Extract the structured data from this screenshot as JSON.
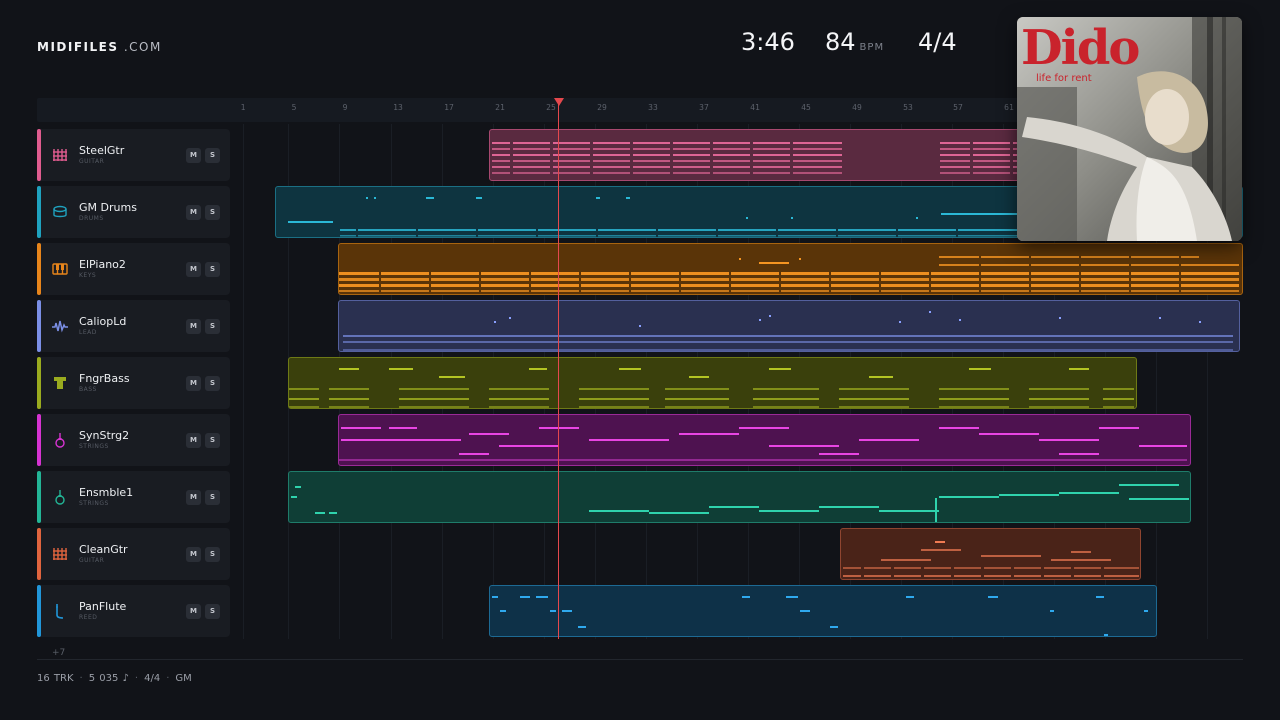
{
  "brand": {
    "name": "MIDIFILES",
    "tld": ".COM"
  },
  "stats": {
    "time": "3:46",
    "bpm": "84",
    "bpm_unit": "BPM",
    "signature": "4/4"
  },
  "album": {
    "artist": "Dido",
    "title": "life for rent"
  },
  "ruler": {
    "ticks": [
      "1",
      "5",
      "9",
      "13",
      "17",
      "21",
      "25",
      "29",
      "33",
      "37",
      "41",
      "45",
      "49",
      "53",
      "57",
      "61"
    ]
  },
  "playhead_bar": 25,
  "tracks": [
    {
      "name": "SteelGtr",
      "category": "GUITAR",
      "mute": "M",
      "solo": "S",
      "color": "#e05c8f",
      "icon": "guitar-grid-icon"
    },
    {
      "name": "GM Drums",
      "category": "DRUMS",
      "mute": "M",
      "solo": "S",
      "color": "#1fa2bf",
      "icon": "drum-icon"
    },
    {
      "name": "ElPiano2",
      "category": "KEYS",
      "mute": "M",
      "solo": "S",
      "color": "#e8851b",
      "icon": "piano-keys-icon"
    },
    {
      "name": "CaliopLd",
      "category": "LEAD",
      "mute": "M",
      "solo": "S",
      "color": "#7b8fe6",
      "icon": "waveform-icon"
    },
    {
      "name": "FngrBass",
      "category": "BASS",
      "mute": "M",
      "solo": "S",
      "color": "#9aab1f",
      "icon": "bass-amp-icon"
    },
    {
      "name": "SynStrg2",
      "category": "STRINGS",
      "mute": "M",
      "solo": "S",
      "color": "#d633d1",
      "icon": "violin-icon"
    },
    {
      "name": "Ensmble1",
      "category": "STRINGS",
      "mute": "M",
      "solo": "S",
      "color": "#23b596",
      "icon": "violin-icon"
    },
    {
      "name": "CleanGtr",
      "category": "GUITAR",
      "mute": "M",
      "solo": "S",
      "color": "#e0643e",
      "icon": "guitar-grid-icon"
    },
    {
      "name": "PanFlute",
      "category": "REED",
      "mute": "M",
      "solo": "S",
      "color": "#2196d9",
      "icon": "flute-icon"
    }
  ],
  "more_tracks": "+7",
  "footer": {
    "tracks": "16 TRK",
    "notes": "5 035 ♪",
    "signature": "4/4",
    "standard": "GM"
  }
}
